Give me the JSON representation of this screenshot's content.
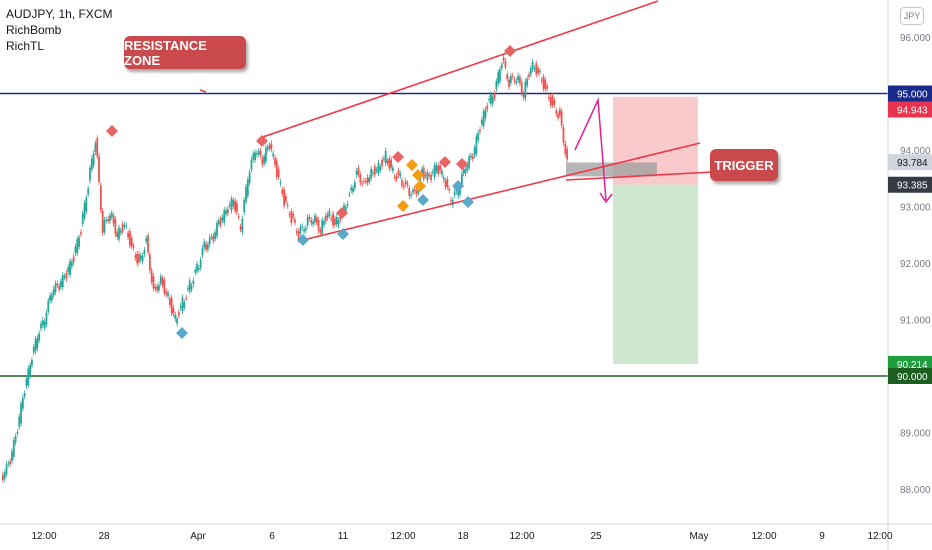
{
  "legend": {
    "symbol": "AUDJPY, 1h, FXCM",
    "indicators": [
      "RichBomb",
      "RichTL"
    ]
  },
  "currency_badge": "JPY",
  "annotations": {
    "resistance_label": "RESISTANCE ZONE",
    "trigger_label": "TRIGGER"
  },
  "price_tags": [
    {
      "text": "95.000",
      "value": 95.0,
      "color": "#1a2a8a"
    },
    {
      "text": "94.943",
      "value": 94.943,
      "color": "#e8344e"
    },
    {
      "text": "93.784",
      "value": 93.784,
      "color": "#d1d4dc"
    },
    {
      "text": "93.385",
      "value": 93.385,
      "color": "#363a45"
    },
    {
      "text": "90.214",
      "value": 90.214,
      "color": "#1e9e3e"
    },
    {
      "text": "90.000",
      "value": 90.0,
      "color": "#1b5e20"
    }
  ],
  "chart_data": {
    "type": "line",
    "title": "AUDJPY, 1h, FXCM",
    "y_axis": {
      "ticks": [
        "96.000",
        "94.000",
        "93.000",
        "92.000",
        "91.000",
        "89.000",
        "88.000"
      ],
      "range": [
        87.7,
        96.4
      ]
    },
    "x_axis": {
      "ticks": [
        "12:00",
        "28",
        "Apr",
        "6",
        "11",
        "12:00",
        "18",
        "12:00",
        "25",
        "May",
        "12:00",
        "9",
        "12:00"
      ]
    },
    "series": [
      {
        "values": [
          88.2,
          88.4,
          88.9,
          89.6,
          90.2,
          90.7,
          91.0,
          91.5,
          91.6,
          91.8,
          92.1,
          92.6,
          93.4,
          94.2,
          92.6,
          92.9,
          92.5,
          92.7,
          92.3,
          92.0,
          92.4,
          91.5,
          91.7,
          91.4,
          91.0,
          91.3,
          91.6,
          91.9,
          92.3,
          92.4,
          92.7,
          92.9,
          93.1,
          92.6,
          93.5,
          94.0,
          93.8,
          94.1,
          93.6,
          93.1,
          92.8,
          92.5,
          92.7,
          92.8,
          92.6,
          92.9,
          92.7,
          92.9,
          93.2,
          93.6,
          93.4,
          93.6,
          93.7,
          93.9,
          93.6,
          93.5,
          93.3,
          93.2,
          93.6,
          93.5,
          93.7,
          93.5,
          93.1,
          93.3,
          93.7,
          93.9,
          94.4,
          94.8,
          95.0,
          95.6,
          95.2,
          95.3,
          95.0,
          95.5,
          95.4,
          95.1,
          94.8,
          94.6,
          93.8
        ]
      }
    ],
    "horizontal_lines": [
      {
        "value": 95.0,
        "color": "#1a2a8a"
      },
      {
        "value": 90.0,
        "color": "#1b5e20"
      }
    ],
    "position": {
      "entry": 93.385,
      "stop": 94.943,
      "target": 90.214
    },
    "grid": false
  }
}
